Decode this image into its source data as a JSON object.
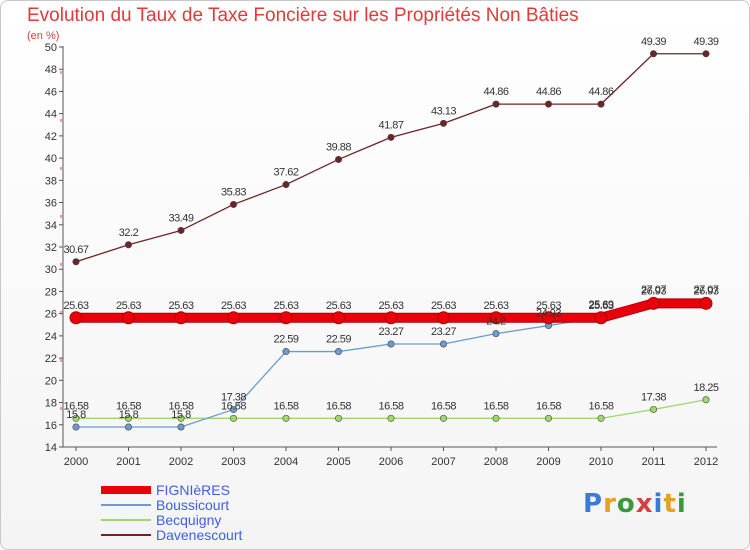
{
  "chart_data": {
    "type": "line",
    "title": "Evolution du Taux de Taxe Foncière sur les Propriétés Non Bâties",
    "subtitle": "(en %)",
    "x": [
      "2000",
      "2001",
      "2002",
      "2003",
      "2004",
      "2005",
      "2006",
      "2007",
      "2008",
      "2009",
      "2010",
      "2011",
      "2012"
    ],
    "ylim": [
      14,
      50
    ],
    "yticks": [
      14,
      16,
      18,
      20,
      22,
      24,
      26,
      28,
      30,
      32,
      34,
      36,
      38,
      40,
      42,
      44,
      46,
      48,
      50
    ],
    "grid": false,
    "legend_position": "bottom-left",
    "series": [
      {
        "name": "FIGNIèRES",
        "color": "#e8000b",
        "values": [
          25.63,
          25.63,
          25.63,
          25.63,
          25.63,
          25.63,
          25.63,
          25.63,
          25.63,
          25.63,
          25.63,
          26.93,
          26.93
        ],
        "labels": [
          "25.63",
          "25.63",
          "25.63",
          "25.63",
          "25.63",
          "25.63",
          "25.63",
          "25.63",
          "25.63",
          "25.63",
          "25.63",
          "26.93",
          "26.93"
        ]
      },
      {
        "name": "Boussicourt",
        "color": "#6b9bd2",
        "values": [
          15.8,
          15.8,
          15.8,
          17.38,
          22.59,
          22.59,
          23.27,
          23.27,
          24.2,
          24.93,
          25.69,
          27.07,
          27.07
        ],
        "labels": [
          "15.8",
          "15.8",
          "15.8",
          "17.38",
          "22.59",
          "22.59",
          "23.27",
          "23.27",
          "24.2",
          "24.93",
          "25.69",
          "27.07",
          "27.07"
        ]
      },
      {
        "name": "Becquigny",
        "color": "#9ed86f",
        "values": [
          16.58,
          16.58,
          16.58,
          16.58,
          16.58,
          16.58,
          16.58,
          16.58,
          16.58,
          16.58,
          16.58,
          17.38,
          18.25
        ],
        "labels": [
          "16.58",
          "16.58",
          "16.58",
          "16.58",
          "16.58",
          "16.58",
          "16.58",
          "16.58",
          "16.58",
          "16.58",
          "16.58",
          "17.38",
          "18.25"
        ]
      },
      {
        "name": "Davenescourt",
        "color": "#6e2427",
        "values": [
          30.67,
          32.2,
          33.49,
          35.83,
          37.62,
          39.88,
          41.87,
          43.13,
          44.86,
          44.86,
          44.86,
          49.39,
          49.39
        ],
        "labels": [
          "30.67",
          "32.2",
          "33.49",
          "35.83",
          "37.62",
          "39.88",
          "41.87",
          "43.13",
          "44.86",
          "44.86",
          "44.86",
          "49.39",
          "49.39"
        ]
      }
    ]
  },
  "logo": {
    "text": "Proxiti"
  }
}
